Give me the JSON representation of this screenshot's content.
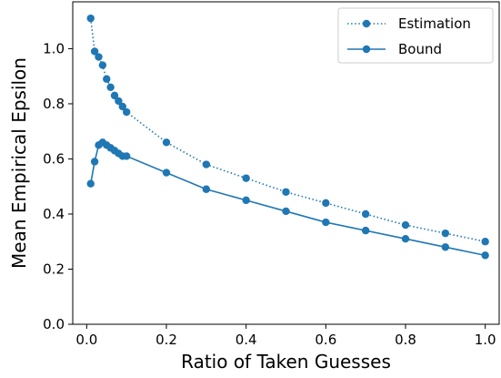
{
  "chart_data": {
    "type": "line",
    "title": "",
    "xlabel": "Ratio of Taken Guesses",
    "ylabel": "Mean Empirical Epsilon",
    "xlim": [
      -0.035,
      1.035
    ],
    "ylim": [
      0.0,
      1.17
    ],
    "xticks": [
      "0.0",
      "0.2",
      "0.4",
      "0.6",
      "0.8",
      "1.0"
    ],
    "yticks": [
      "0.0",
      "0.2",
      "0.4",
      "0.6",
      "0.8",
      "1.0"
    ],
    "grid": false,
    "legend": "top-right",
    "series": [
      {
        "name": "Estimation",
        "color": "#1f77b4",
        "linestyle": "dotted",
        "x": [
          0.01,
          0.02,
          0.03,
          0.04,
          0.05,
          0.06,
          0.07,
          0.08,
          0.09,
          0.1,
          0.2,
          0.3,
          0.4,
          0.5,
          0.6,
          0.7,
          0.8,
          0.9,
          1.0
        ],
        "y": [
          1.11,
          0.99,
          0.97,
          0.94,
          0.89,
          0.86,
          0.83,
          0.81,
          0.79,
          0.77,
          0.66,
          0.58,
          0.53,
          0.48,
          0.44,
          0.4,
          0.36,
          0.33,
          0.3
        ]
      },
      {
        "name": "Bound",
        "color": "#1f77b4",
        "linestyle": "solid",
        "x": [
          0.01,
          0.02,
          0.03,
          0.04,
          0.05,
          0.06,
          0.07,
          0.08,
          0.09,
          0.1,
          0.2,
          0.3,
          0.4,
          0.5,
          0.6,
          0.7,
          0.8,
          0.9,
          1.0
        ],
        "y": [
          0.51,
          0.59,
          0.65,
          0.66,
          0.65,
          0.64,
          0.63,
          0.62,
          0.61,
          0.61,
          0.55,
          0.49,
          0.45,
          0.41,
          0.37,
          0.34,
          0.31,
          0.28,
          0.25
        ]
      }
    ]
  }
}
